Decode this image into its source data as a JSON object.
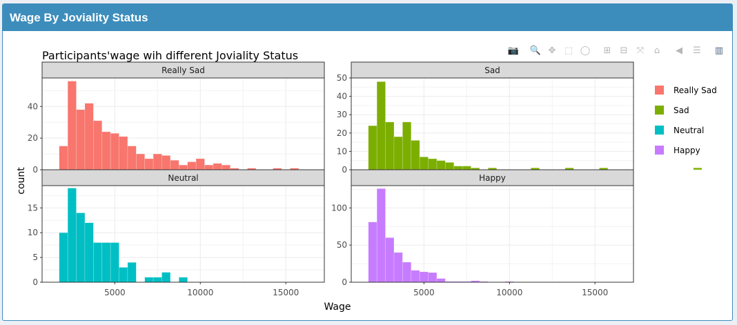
{
  "header": {
    "title": "Wage By Joviality Status"
  },
  "colors": {
    "header_bg": "#3c8dbc",
    "strip_bg": "#d9d9d9",
    "grid": "#ebebeb"
  },
  "modebar": [
    {
      "name": "camera-icon",
      "glyph": "📷",
      "active": false
    },
    {
      "name": "zoom-icon",
      "glyph": "🔍",
      "active": true
    },
    {
      "name": "pan-icon",
      "glyph": "✥",
      "active": false
    },
    {
      "name": "box-select-icon",
      "glyph": "⬚",
      "active": false
    },
    {
      "name": "lasso-select-icon",
      "glyph": "◯",
      "active": false
    },
    {
      "name": "zoom-in-icon",
      "glyph": "⊞",
      "active": false
    },
    {
      "name": "zoom-out-icon",
      "glyph": "⊟",
      "active": false
    },
    {
      "name": "autoscale-icon",
      "glyph": "⤧",
      "active": false
    },
    {
      "name": "reset-axes-icon",
      "glyph": "⌂",
      "active": false
    },
    {
      "name": "spike-lines-icon",
      "glyph": "◀",
      "active": false
    },
    {
      "name": "compare-hover-icon",
      "glyph": "☰",
      "active": false
    },
    {
      "name": "plotly-logo-icon",
      "glyph": "▥",
      "active": false
    }
  ],
  "chart_data": {
    "type": "bar",
    "subtype": "histogram-facet",
    "title": "Participants'wage wih different Joviality Status",
    "xlabel": "Wage",
    "ylabel": "count",
    "bin_width": 500,
    "bin_start": 1750,
    "xlim": [
      750,
      17250
    ],
    "xticks": [
      5000,
      10000,
      15000
    ],
    "grid": true,
    "legend_position": "right",
    "panels": [
      {
        "name": "Really Sad",
        "color": "#F8766D",
        "ylim": [
          0,
          58
        ],
        "yticks": [
          0,
          20,
          40
        ],
        "values": [
          15,
          56,
          38,
          42,
          31,
          24,
          23,
          21,
          15,
          10,
          7,
          10,
          9,
          6,
          3,
          5,
          7,
          3,
          4,
          3,
          1,
          0,
          1,
          0,
          0,
          1,
          0,
          1,
          0,
          0,
          0,
          0,
          0,
          0,
          0,
          1,
          0,
          0,
          0,
          0
        ]
      },
      {
        "name": "Sad",
        "color": "#7CAE00",
        "ylim": [
          0,
          50
        ],
        "yticks": [
          0,
          10,
          20,
          30,
          40,
          50
        ],
        "values": [
          24,
          48,
          26,
          18,
          26,
          16,
          7,
          6,
          5,
          4,
          2,
          2,
          1,
          0,
          1,
          0,
          0,
          0,
          0,
          1,
          0,
          0,
          0,
          1,
          0,
          0,
          0,
          1,
          0,
          0,
          0,
          0,
          0,
          0,
          0,
          0,
          0,
          0,
          1,
          0
        ]
      },
      {
        "name": "Neutral",
        "color": "#00BFC4",
        "ylim": [
          0,
          19.5
        ],
        "yticks": [
          0,
          5,
          10,
          15
        ],
        "values": [
          10,
          19,
          14,
          12,
          8,
          8,
          8,
          3,
          4,
          0,
          1,
          1,
          2,
          0,
          1,
          0,
          0,
          0,
          0,
          0,
          0,
          0,
          0,
          0,
          0,
          0,
          0,
          0,
          0,
          0,
          0,
          0,
          0,
          0,
          0,
          0,
          0,
          0,
          0,
          0
        ]
      },
      {
        "name": "Happy",
        "color": "#C77CFF",
        "ylim": [
          0,
          130
        ],
        "yticks": [
          0,
          50,
          100
        ],
        "values": [
          81,
          126,
          60,
          40,
          27,
          16,
          14,
          13,
          5,
          1,
          1,
          1,
          2,
          1,
          0,
          0,
          1,
          0,
          0,
          0,
          0,
          0,
          0,
          0,
          0,
          0,
          0,
          0,
          0,
          0,
          0,
          0,
          0,
          0,
          0,
          0,
          0,
          0,
          0,
          0
        ]
      }
    ],
    "legend": [
      "Really Sad",
      "Sad",
      "Neutral",
      "Happy"
    ]
  }
}
